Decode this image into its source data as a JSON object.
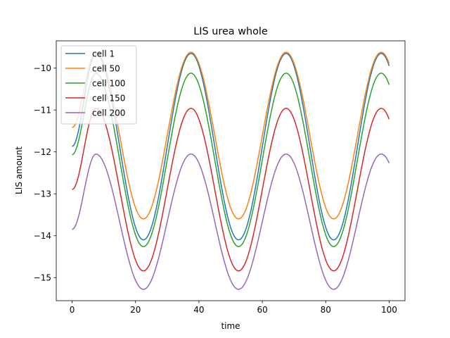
{
  "chart_data": {
    "type": "line",
    "title": "LIS urea whole",
    "xlabel": "time",
    "ylabel": "LIS amount",
    "xlim": [
      -5,
      105
    ],
    "ylim": [
      -15.55,
      -9.35
    ],
    "xticks": [
      0,
      20,
      40,
      60,
      80,
      100
    ],
    "yticks": [
      -15,
      -14,
      -13,
      -12,
      -11,
      -10
    ],
    "xtick_labels": [
      "0",
      "20",
      "40",
      "60",
      "80",
      "100"
    ],
    "ytick_labels": [
      "−15",
      "−14",
      "−13",
      "−12",
      "−11",
      "−10"
    ],
    "grid": false,
    "legend_position": "upper-left",
    "x_range": [
      0,
      100
    ],
    "series": [
      {
        "name": "cell 1",
        "color": "#1f77b4",
        "x": [
          0,
          7.5,
          22.5,
          37.5,
          52.5,
          67.5,
          82.5,
          97.5,
          100
        ],
        "y": [
          -11.87,
          -9.65,
          -14.1,
          -9.65,
          -14.1,
          -9.65,
          -14.1,
          -9.65,
          -9.92
        ]
      },
      {
        "name": "cell 50",
        "color": "#ff7f0e",
        "x": [
          0,
          7.5,
          22.5,
          37.5,
          52.5,
          67.5,
          82.5,
          97.5,
          100
        ],
        "y": [
          -11.42,
          -9.62,
          -13.6,
          -9.62,
          -13.6,
          -9.62,
          -13.6,
          -9.62,
          -9.8
        ]
      },
      {
        "name": "cell 100",
        "color": "#2ca02c",
        "x": [
          0,
          7.5,
          22.5,
          37.5,
          52.5,
          67.5,
          82.5,
          97.5,
          100
        ],
        "y": [
          -12.07,
          -10.12,
          -14.26,
          -10.12,
          -14.26,
          -10.12,
          -14.26,
          -10.12,
          -10.35
        ]
      },
      {
        "name": "cell 150",
        "color": "#d62728",
        "x": [
          0,
          7.5,
          22.5,
          37.5,
          52.5,
          67.5,
          82.5,
          97.5,
          100
        ],
        "y": [
          -12.9,
          -10.96,
          -14.84,
          -10.96,
          -14.84,
          -10.96,
          -14.84,
          -10.96,
          -11.17
        ]
      },
      {
        "name": "cell 200",
        "color": "#9467bd",
        "x": [
          0,
          7.5,
          22.5,
          37.5,
          52.5,
          67.5,
          82.5,
          97.5,
          100
        ],
        "y": [
          -13.85,
          -12.05,
          -15.28,
          -12.05,
          -15.28,
          -12.05,
          -15.28,
          -12.05,
          -12.27
        ]
      }
    ]
  }
}
